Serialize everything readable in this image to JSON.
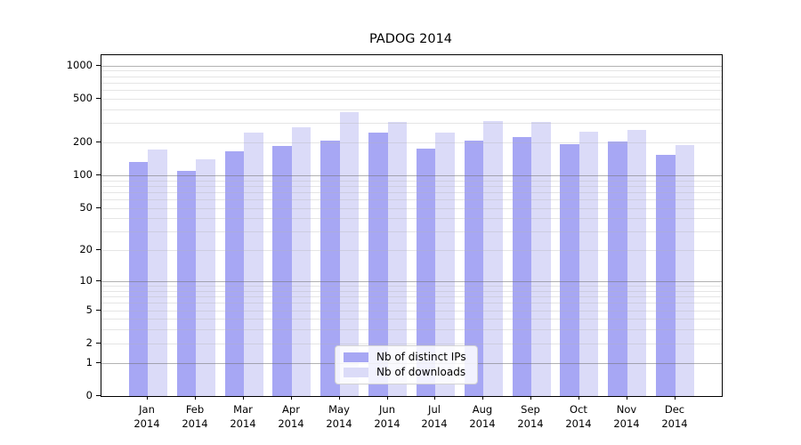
{
  "chart_data": {
    "type": "bar",
    "title": "PADOG 2014",
    "categories": [
      "Jan 2014",
      "Feb 2014",
      "Mar 2014",
      "Apr 2014",
      "May 2014",
      "Jun 2014",
      "Jul 2014",
      "Aug 2014",
      "Sep 2014",
      "Oct 2014",
      "Nov 2014",
      "Dec 2014"
    ],
    "series": [
      {
        "name": "Nb of distinct IPs",
        "color": "#a7a7f4",
        "values": [
          133,
          110,
          165,
          187,
          207,
          244,
          175,
          208,
          223,
          191,
          202,
          153
        ]
      },
      {
        "name": "Nb of downloads",
        "color": "#dbdbf8",
        "values": [
          173,
          139,
          244,
          276,
          375,
          309,
          246,
          315,
          309,
          249,
          260,
          190
        ]
      }
    ],
    "xlabel": "",
    "ylabel": "",
    "yscale": "log1p",
    "y_ticks": [
      1000,
      500,
      200,
      100,
      50,
      20,
      10,
      5,
      2,
      1,
      0
    ],
    "ylim": [
      0,
      1250
    ],
    "grid": true,
    "grid_minor": true,
    "legend_position": "lower center"
  }
}
